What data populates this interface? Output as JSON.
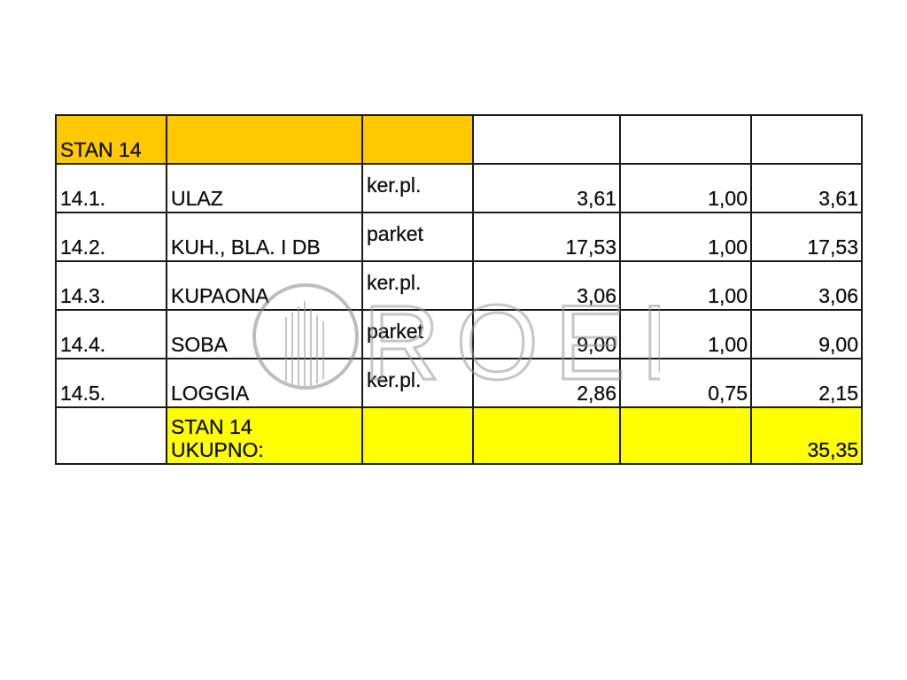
{
  "colors": {
    "header": "#FFC800",
    "total": "#FFFF00"
  },
  "header": {
    "title": "STAN 14"
  },
  "rows": [
    {
      "id": "14.1.",
      "room": "ULAZ",
      "floor": "ker.pl.",
      "area": "3,61",
      "coef": "1,00",
      "net": "3,61"
    },
    {
      "id": "14.2.",
      "room": "KUH., BLA. I DB",
      "floor": "parket",
      "area": "17,53",
      "coef": "1,00",
      "net": "17,53"
    },
    {
      "id": "14.3.",
      "room": "KUPAONA",
      "floor": "ker.pl.",
      "area": "3,06",
      "coef": "1,00",
      "net": "3,06"
    },
    {
      "id": "14.4.",
      "room": "SOBA",
      "floor": "parket",
      "area": "9,00",
      "coef": "1,00",
      "net": "9,00"
    },
    {
      "id": "14.5.",
      "room": "LOGGIA",
      "floor": "ker.pl.",
      "area": "2,86",
      "coef": "0,75",
      "net": "2,15"
    }
  ],
  "total": {
    "label_line1": "STAN 14",
    "label_line2": "UKUPNO:",
    "value": "35,35"
  },
  "watermark": {
    "text": "ROEL"
  }
}
